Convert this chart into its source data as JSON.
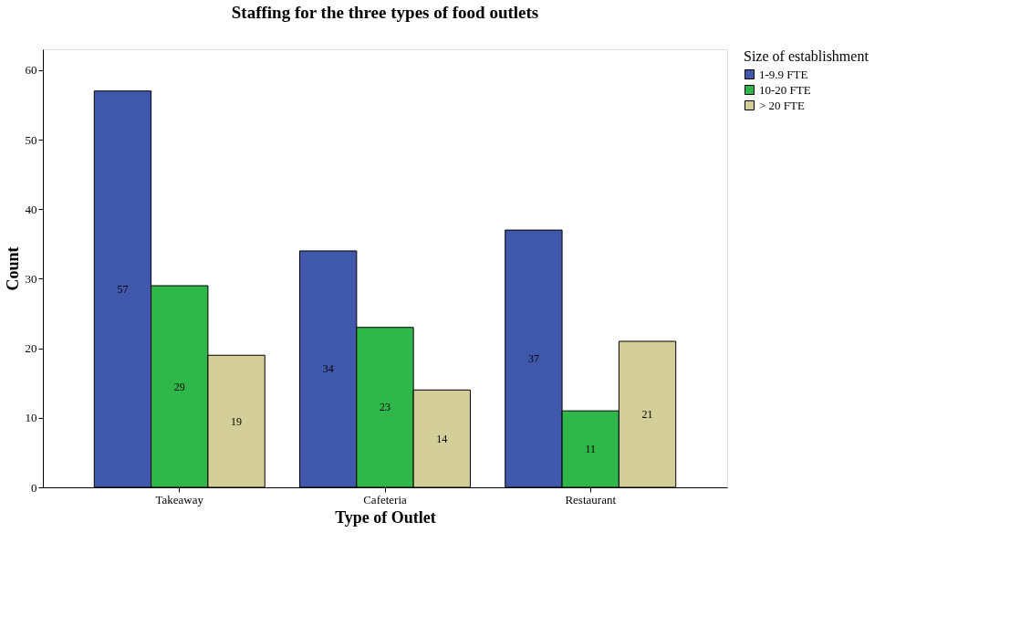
{
  "chart_data": {
    "type": "bar",
    "title": "Staffing for the three types of food outlets",
    "xlabel": "Type of Outlet",
    "ylabel": "Count",
    "legend_title": "Size of establishment",
    "categories": [
      "Takeaway",
      "Cafeteria",
      "Restaurant"
    ],
    "series": [
      {
        "name": "1-9.9 FTE",
        "color": "#3f58ab",
        "values": [
          57,
          34,
          37
        ]
      },
      {
        "name": "10-20 FTE",
        "color": "#2fb74a",
        "values": [
          29,
          23,
          11
        ]
      },
      {
        "name": "> 20 FTE",
        "color": "#d4cf98",
        "values": [
          19,
          14,
          21
        ]
      }
    ],
    "ylim": [
      0,
      63
    ],
    "yticks": [
      0,
      10,
      20,
      30,
      40,
      50,
      60
    ],
    "grid": false,
    "legend": "top right",
    "data_labels": true
  }
}
